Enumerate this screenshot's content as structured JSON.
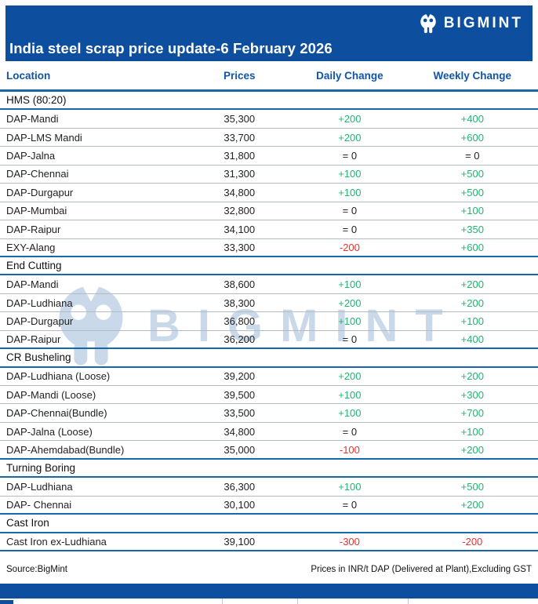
{
  "banner": {
    "title": "India steel scrap price update-6 February 2026",
    "brand": "BIGMINT"
  },
  "table": {
    "columns": [
      "Location",
      "Prices",
      "Daily Change",
      "Weekly Change"
    ],
    "sections": [
      {
        "name": "HMS (80:20)",
        "rows": [
          [
            "DAP-Mandi",
            "35,300",
            "+200",
            "+400"
          ],
          [
            "DAP-LMS Mandi",
            "33,700",
            "+200",
            "+600"
          ],
          [
            "DAP-Jalna",
            "31,800",
            "= 0",
            "= 0"
          ],
          [
            "DAP-Chennai",
            "31,300",
            "+100",
            "+500"
          ],
          [
            "DAP-Durgapur",
            "34,800",
            "+100",
            "+500"
          ],
          [
            "DAP-Mumbai",
            "32,800",
            "= 0",
            "+100"
          ],
          [
            "DAP-Raipur",
            "34,100",
            "= 0",
            "+350"
          ],
          [
            "EXY-Alang",
            "33,300",
            "-200",
            "+600"
          ]
        ]
      },
      {
        "name": "End Cutting",
        "rows": [
          [
            "DAP-Mandi",
            "38,600",
            "+100",
            "+200"
          ],
          [
            "DAP-Ludhiana",
            "38,300",
            "+200",
            "+200"
          ],
          [
            "DAP-Durgapur",
            "36,800",
            "+100",
            "+100"
          ],
          [
            "DAP-Raipur",
            "36,200",
            "= 0",
            "+400"
          ]
        ]
      },
      {
        "name": "CR Busheling",
        "rows": [
          [
            "DAP-Ludhiana (Loose)",
            "39,200",
            "+200",
            "+200"
          ],
          [
            "DAP-Mandi (Loose)",
            "39,500",
            "+100",
            "+300"
          ],
          [
            "DAP-Chennai(Bundle)",
            "33,500",
            "+100",
            "+700"
          ],
          [
            "DAP-Jalna (Loose)",
            "34,800",
            "= 0",
            "+100"
          ],
          [
            "DAP-Ahemdabad(Bundle)",
            "35,000",
            "-100",
            "+200"
          ]
        ]
      },
      {
        "name": "Turning Boring",
        "rows": [
          [
            "DAP-Ludhiana",
            "36,300",
            "+100",
            "+500"
          ],
          [
            "DAP- Chennai",
            "30,100",
            "= 0",
            "+200"
          ]
        ]
      },
      {
        "name": "Cast Iron",
        "rows": [
          [
            "Cast Iron ex-Ludhiana",
            "39,100",
            "-300",
            "-200"
          ]
        ]
      }
    ]
  },
  "watermark": {
    "text": "BIGMINT"
  },
  "footer": {
    "source": "Source:BigMint",
    "note": "Prices in INR/t DAP (Delivered at Plant),Excluding GST"
  },
  "colors": {
    "banner_blue": "#0d4f9e",
    "header_text_blue": "#1155a4",
    "line_blue": "#1767ad",
    "up_green": "#21b573",
    "down_red": "#e73231"
  }
}
